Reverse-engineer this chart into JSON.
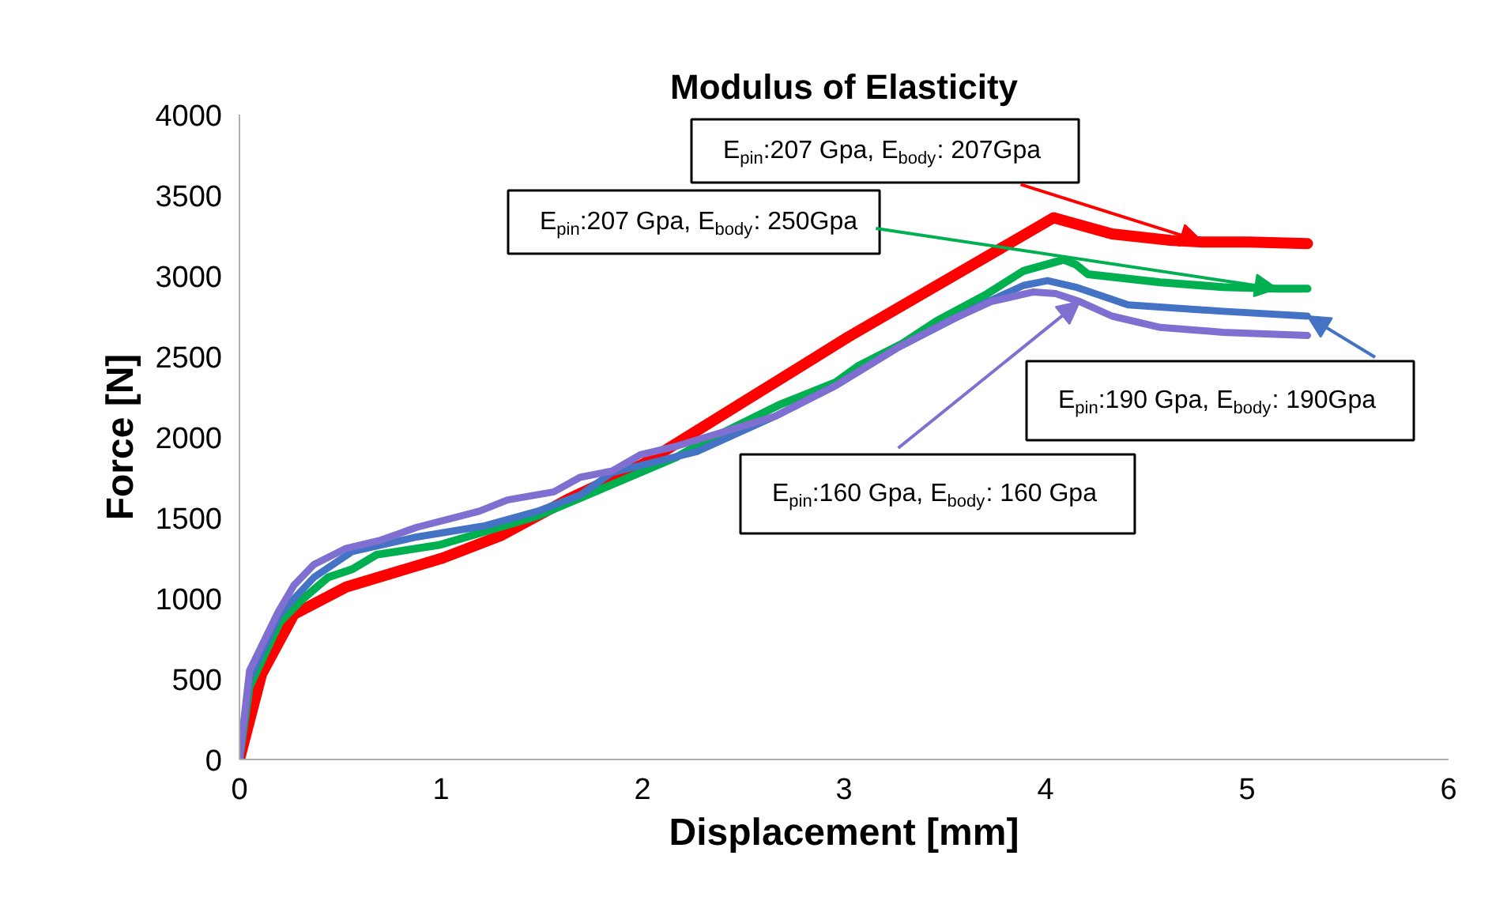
{
  "chart_data": {
    "type": "line",
    "title": "Modulus of Elasticity",
    "xlabel": "Displacement [mm]",
    "ylabel": "Force [N]",
    "xlim": [
      0,
      6
    ],
    "xticks": [
      0,
      1,
      2,
      3,
      4,
      5,
      6
    ],
    "ylim": [
      0,
      4000
    ],
    "yticks": [
      0,
      500,
      1000,
      1500,
      2000,
      2500,
      3000,
      3500,
      4000
    ],
    "grid": false,
    "series": [
      {
        "color": "#ff0000",
        "x": [
          0,
          0.11,
          0.27,
          0.53,
          1.01,
          1.3,
          1.64,
          2.0,
          3.02,
          4.04,
          4.33,
          4.62,
          4.78,
          5.01,
          5.3
        ],
        "values": [
          0,
          530,
          900,
          1070,
          1250,
          1390,
          1620,
          1830,
          2620,
          3360,
          3260,
          3220,
          3210,
          3210,
          3200
        ]
      },
      {
        "color": "#00b050",
        "x": [
          0,
          0.05,
          0.2,
          0.31,
          0.44,
          0.56,
          0.68,
          0.99,
          1.29,
          1.48,
          2.16,
          2.29,
          2.68,
          2.96,
          3.07,
          3.29,
          3.46,
          3.7,
          3.89,
          4.09,
          4.15,
          4.21,
          4.57,
          4.88,
          5.15,
          5.3
        ],
        "values": [
          0,
          450,
          850,
          990,
          1130,
          1180,
          1270,
          1330,
          1440,
          1510,
          1870,
          1960,
          2200,
          2340,
          2440,
          2580,
          2720,
          2880,
          3030,
          3100,
          3070,
          3010,
          2960,
          2930,
          2920,
          2920
        ]
      },
      {
        "color": "#4472c4",
        "x": [
          0,
          0.05,
          0.2,
          0.28,
          0.37,
          0.56,
          0.88,
          1.22,
          1.48,
          1.69,
          1.85,
          2.27,
          2.66,
          2.96,
          3.26,
          3.68,
          3.89,
          4.01,
          4.15,
          4.41,
          4.88,
          5.3
        ],
        "values": [
          0,
          500,
          900,
          1010,
          1130,
          1290,
          1380,
          1450,
          1540,
          1640,
          1780,
          1910,
          2130,
          2320,
          2550,
          2820,
          2940,
          2970,
          2930,
          2820,
          2780,
          2750
        ]
      },
      {
        "color": "#7f6fd0",
        "x": [
          0,
          0.05,
          0.19,
          0.27,
          0.37,
          0.53,
          0.7,
          0.88,
          1.19,
          1.33,
          1.56,
          1.69,
          1.85,
          1.99,
          2.16,
          2.66,
          2.96,
          3.26,
          3.52,
          3.73,
          3.94,
          4.05,
          4.17,
          4.33,
          4.57,
          4.88,
          5.3
        ],
        "values": [
          0,
          550,
          910,
          1080,
          1210,
          1310,
          1360,
          1440,
          1540,
          1610,
          1660,
          1750,
          1790,
          1890,
          1940,
          2130,
          2320,
          2550,
          2720,
          2840,
          2900,
          2890,
          2840,
          2750,
          2680,
          2650,
          2630
        ]
      }
    ],
    "annotations": [
      {
        "text": "E$_{pin}$:207 Gpa, E$_{body}$: 207Gpa",
        "x": 4.78,
        "y": 3210
      },
      {
        "text": "E$_{pin}$:207 Gpa, E$_{body}$: 250Gpa",
        "x": 5.15,
        "y": 2920
      },
      {
        "text": "E$_{pin}$:190 Gpa, E$_{body}$: 190Gpa",
        "x": 5.3,
        "y": 2750
      },
      {
        "text": "E$_{pin}$:160 Gpa, E$_{body}$: 160 Gpa",
        "x": 4.17,
        "y": 2840
      }
    ]
  }
}
